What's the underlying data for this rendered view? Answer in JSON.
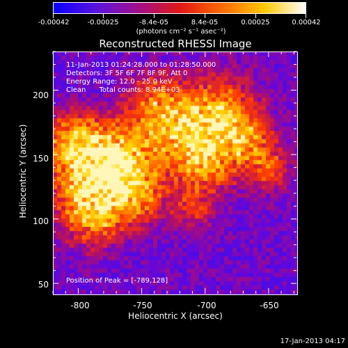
{
  "colorbar": {
    "ticks": [
      "-0.00042",
      "-0.00025",
      "-8.4e-05",
      "8.4e-05",
      "0.00025",
      "0.00042"
    ],
    "units": "(photons cm⁻² s⁻¹ asec⁻²)",
    "range": [
      -0.00042,
      0.00042
    ]
  },
  "chart_data": {
    "type": "heatmap",
    "title": "Reconstructed RHESSI Image",
    "xlabel": "Heliocentric X (arcsec)",
    "ylabel": "Heliocentric Y (arcsec)",
    "xlim": [
      -820,
      -628
    ],
    "ylim": [
      42,
      230
    ],
    "xticks": [
      "-800",
      "-750",
      "-700",
      "-650"
    ],
    "yticks": [
      "200",
      "150",
      "100",
      "50"
    ],
    "peak_label": "Position of Peak = [-789,128]",
    "peak": [
      -789,
      128
    ],
    "info_lines": [
      "11-Jan-2013 01:24:28.000 to 01:28:50.000",
      "Detectors: 3F 5F 6F 7F 8F 9F, Att 0",
      "Energy Range: 12.0 - 25.0 keV",
      "Clean      Total counts: 8.94E+03"
    ],
    "colormap": [
      "#1a16ff",
      "#6a06d8",
      "#b81060",
      "#ff3a00",
      "#ff9200",
      "#ffd400",
      "#ffffe0"
    ]
  },
  "footer": {
    "timestamp": "17-Jan-2013 04:17"
  }
}
